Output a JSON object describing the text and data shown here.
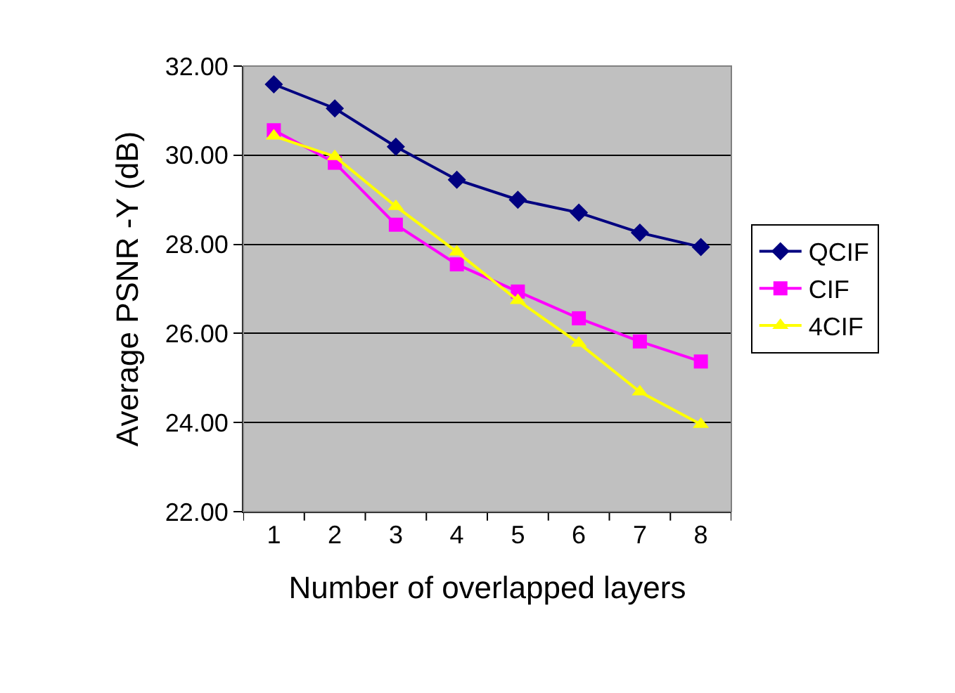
{
  "chart_data": {
    "type": "line",
    "xlabel": "Number of overlapped layers",
    "ylabel": "Average PSNR -Y (dB)",
    "categories": [
      "1",
      "2",
      "3",
      "4",
      "5",
      "6",
      "7",
      "8"
    ],
    "series": [
      {
        "name": "QCIF",
        "color": "#000080",
        "marker": "diamond",
        "values": [
          31.59,
          31.05,
          30.19,
          29.45,
          29.0,
          28.71,
          28.26,
          27.94
        ]
      },
      {
        "name": "CIF",
        "color": "#ff00ff",
        "marker": "square",
        "values": [
          30.56,
          29.83,
          28.44,
          27.55,
          26.94,
          26.34,
          25.82,
          25.37
        ]
      },
      {
        "name": "4CIF",
        "color": "#ffff00",
        "marker": "triangle",
        "values": [
          30.43,
          29.97,
          28.85,
          27.83,
          26.74,
          25.78,
          24.69,
          23.96
        ]
      }
    ],
    "ylim": [
      22,
      32
    ],
    "yticks": [
      {
        "value": 22,
        "label": "22.00"
      },
      {
        "value": 24,
        "label": "24.00"
      },
      {
        "value": 26,
        "label": "26.00"
      },
      {
        "value": 28,
        "label": "28.00"
      },
      {
        "value": 30,
        "label": "30.00"
      },
      {
        "value": 32,
        "label": "32.00"
      }
    ],
    "grid": "y",
    "legend": "right",
    "line_style": "solid"
  }
}
